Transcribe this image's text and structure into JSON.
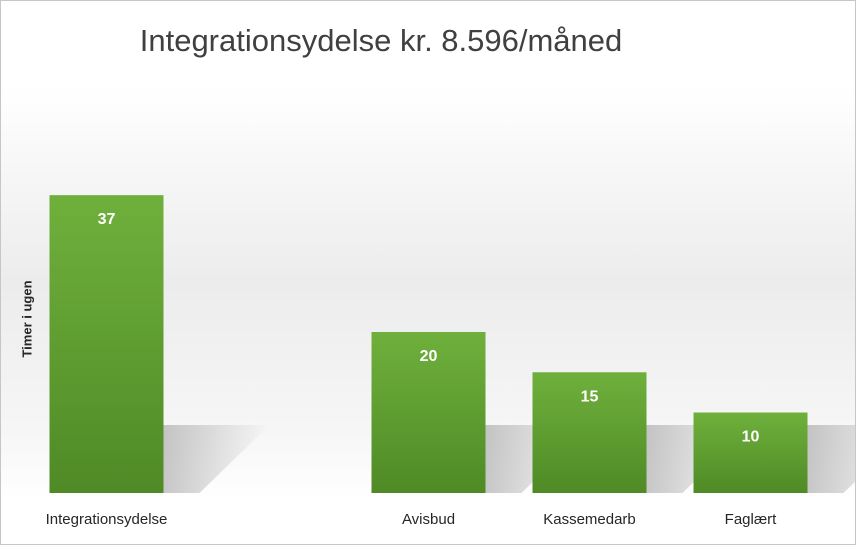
{
  "chart_data": {
    "type": "bar",
    "title": "Integrationsydelse kr. 8.596/måned",
    "ylabel": "Timer i ugen",
    "xlabel": "",
    "categories": [
      "Integrationsydelse",
      "",
      "Avisbud",
      "Kassemedarb",
      "Faglært"
    ],
    "values": [
      37,
      null,
      20,
      15,
      10
    ],
    "data_labels": [
      "37",
      "",
      "20",
      "15",
      "10"
    ],
    "ylim": [
      0,
      40
    ],
    "grid": false,
    "legend": "none",
    "colors": {
      "bar_top": "#6fb03c",
      "bar_bottom": "#4f8a26",
      "label": "#ffffff"
    }
  }
}
